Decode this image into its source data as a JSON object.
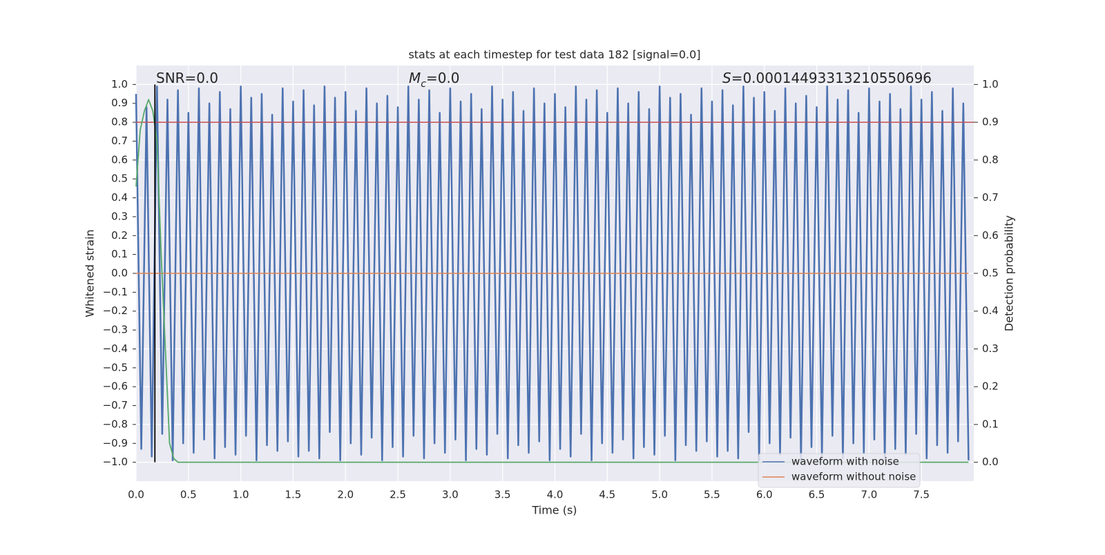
{
  "chart_data": {
    "type": "line",
    "title": "stats at each timestep for test data 182 [signal=0.0]",
    "x_label": "Time (s)",
    "y_label": "Whitened strain",
    "y2_label": "Detection probability",
    "xlim": [
      0,
      8.0
    ],
    "ylim": [
      -1.1,
      1.1
    ],
    "y2lim": [
      -0.05,
      1.05
    ],
    "xticks": [
      {
        "value": 0,
        "label": "0.0"
      },
      0.5,
      {
        "value": 1,
        "label": "1.0"
      },
      1.5,
      {
        "value": 2,
        "label": "2.0"
      },
      2.5,
      {
        "value": 3,
        "label": "3.0"
      },
      3.5,
      {
        "value": 4,
        "label": "4.0"
      },
      4.5,
      {
        "value": 5,
        "label": "5.0"
      },
      5.5,
      {
        "value": 6,
        "label": "6.0"
      },
      6.5,
      {
        "value": 7,
        "label": "7.0"
      },
      7.5
    ],
    "yticks": [
      {
        "value": -1,
        "label": "−1.0"
      },
      {
        "value": -0.9,
        "label": "−0.9"
      },
      {
        "value": -0.8,
        "label": "−0.8"
      },
      {
        "value": -0.7,
        "label": "−0.7"
      },
      {
        "value": -0.6,
        "label": "−0.6"
      },
      {
        "value": -0.5,
        "label": "−0.5"
      },
      {
        "value": -0.4,
        "label": "−0.4"
      },
      {
        "value": -0.3,
        "label": "−0.3"
      },
      {
        "value": -0.2,
        "label": "−0.2"
      },
      {
        "value": -0.1,
        "label": "−0.1"
      },
      {
        "value": 0,
        "label": "0.0"
      },
      0.1,
      0.2,
      0.3,
      0.4,
      0.5,
      0.6,
      0.7,
      0.8,
      0.9,
      {
        "value": 1,
        "label": "1.0"
      }
    ],
    "y2ticks": [
      {
        "value": 0,
        "label": "0.0"
      },
      0.1,
      0.2,
      0.3,
      0.4,
      0.5,
      0.6,
      0.7,
      0.8,
      0.9,
      {
        "value": 1,
        "label": "1.0"
      }
    ],
    "grid": true,
    "legend_loc": "lower right",
    "annotations": [
      {
        "text": "SNR=0.0"
      },
      {
        "symbol": "M",
        "subscript": "c",
        "text": "=0.0"
      },
      {
        "symbol": "S",
        "text": "=0.00014493313210550696"
      }
    ],
    "series": [
      {
        "name": "waveform with noise",
        "color": "#4c72b0",
        "x": [
          0,
          0.05,
          0.1,
          0.15,
          0.2,
          0.25,
          0.3,
          0.35,
          0.4,
          0.45,
          0.5,
          0.55,
          0.6,
          0.65,
          0.7,
          0.75,
          0.8,
          0.85,
          0.9,
          0.95,
          1,
          1.05,
          1.1,
          1.15,
          1.2,
          1.25,
          1.3,
          1.35,
          1.4,
          1.45,
          1.5,
          1.55,
          1.6,
          1.65,
          1.7,
          1.75,
          1.8,
          1.85,
          1.9,
          1.95,
          2,
          2.05,
          2.1,
          2.15,
          2.2,
          2.25,
          2.3,
          2.35,
          2.4,
          2.45,
          2.5,
          2.55,
          2.6,
          2.65,
          2.7,
          2.75,
          2.8,
          2.85,
          2.9,
          2.95,
          3,
          3.05,
          3.1,
          3.15,
          3.2,
          3.25,
          3.3,
          3.35,
          3.4,
          3.45,
          3.5,
          3.55,
          3.6,
          3.65,
          3.7,
          3.75,
          3.8,
          3.85,
          3.9,
          3.95,
          4,
          4.05,
          4.1,
          4.15,
          4.2,
          4.25,
          4.3,
          4.35,
          4.4,
          4.45,
          4.5,
          4.55,
          4.6,
          4.65,
          4.7,
          4.75,
          4.8,
          4.85,
          4.9,
          4.95,
          5,
          5.05,
          5.1,
          5.15,
          5.2,
          5.25,
          5.3,
          5.35,
          5.4,
          5.45,
          5.5,
          5.55,
          5.6,
          5.65,
          5.7,
          5.75,
          5.8,
          5.85,
          5.9,
          5.95,
          6,
          6.05,
          6.1,
          6.15,
          6.2,
          6.25,
          6.3,
          6.35,
          6.4,
          6.45,
          6.5,
          6.55,
          6.6,
          6.65,
          6.7,
          6.75,
          6.8,
          6.85,
          6.9,
          6.95,
          7,
          7.05,
          7.1,
          7.15,
          7.2,
          7.25,
          7.3,
          7.35,
          7.4,
          7.45,
          7.5,
          7.55,
          7.6,
          7.65,
          7.7,
          7.75,
          7.8,
          7.85,
          7.9,
          7.95
        ],
        "values": [
          0.95,
          -0.93,
          0.88,
          -0.97,
          0.99,
          -0.85,
          0.92,
          -0.99,
          0.97,
          -0.9,
          0.85,
          -0.95,
          0.98,
          -0.88,
          0.9,
          -0.98,
          0.96,
          -0.92,
          0.87,
          -0.96,
          0.99,
          -0.86,
          0.93,
          -0.99,
          0.95,
          -0.91,
          0.84,
          -0.94,
          0.98,
          -0.89,
          0.91,
          -0.97,
          0.97,
          -0.94,
          0.89,
          -0.98,
          0.99,
          -0.84,
          0.93,
          -0.99,
          0.96,
          -0.9,
          0.86,
          -0.96,
          0.98,
          -0.87,
          0.9,
          -0.99,
          0.94,
          -0.92,
          0.88,
          -0.97,
          0.99,
          -0.86,
          0.92,
          -0.98,
          0.97,
          -0.9,
          0.85,
          -0.95,
          0.98,
          -0.88,
          0.91,
          -0.99,
          0.95,
          -0.93,
          0.87,
          -0.96,
          0.99,
          -0.85,
          0.92,
          -0.98,
          0.96,
          -0.91,
          0.86,
          -0.95,
          0.98,
          -0.89,
          0.9,
          -0.99,
          0.95,
          -0.93,
          0.88,
          -0.97,
          0.99,
          -0.85,
          0.92,
          -0.99,
          0.97,
          -0.9,
          0.85,
          -0.95,
          0.98,
          -0.88,
          0.9,
          -0.98,
          0.96,
          -0.92,
          0.87,
          -0.96,
          0.99,
          -0.86,
          0.93,
          -0.99,
          0.95,
          -0.91,
          0.84,
          -0.94,
          0.98,
          -0.89,
          0.91,
          -0.97,
          0.97,
          -0.94,
          0.89,
          -0.98,
          0.99,
          -0.84,
          0.93,
          -0.99,
          0.96,
          -0.9,
          0.86,
          -0.96,
          0.98,
          -0.87,
          0.9,
          -0.99,
          0.94,
          -0.92,
          0.88,
          -0.97,
          0.99,
          -0.86,
          0.92,
          -0.98,
          0.97,
          -0.9,
          0.85,
          -0.95,
          0.98,
          -0.88,
          0.91,
          -0.99,
          0.95,
          -0.93,
          0.87,
          -0.96,
          0.99,
          -0.85,
          0.92,
          -0.98,
          0.96,
          -0.91,
          0.86,
          -0.95,
          0.98,
          -0.89,
          0.9,
          -0.99
        ]
      },
      {
        "name": "waveform without noise",
        "color": "#dd8452",
        "x": [
          0,
          7.95
        ],
        "values": [
          0,
          0
        ]
      }
    ],
    "probability": {
      "color": "#55a868",
      "axis": "y2",
      "x": [
        0,
        0.04,
        0.08,
        0.12,
        0.16,
        0.2,
        0.24,
        0.28,
        0.32,
        0.36,
        0.4,
        7.95
      ],
      "values": [
        0.73,
        0.88,
        0.93,
        0.96,
        0.93,
        0.85,
        0.55,
        0.3,
        0.05,
        0.01,
        0,
        0
      ]
    },
    "threshold": {
      "value": 0.9,
      "axis": "y2",
      "color": "#c44e52"
    },
    "marker_x": {
      "value": 0.18,
      "color": "#000000"
    }
  }
}
